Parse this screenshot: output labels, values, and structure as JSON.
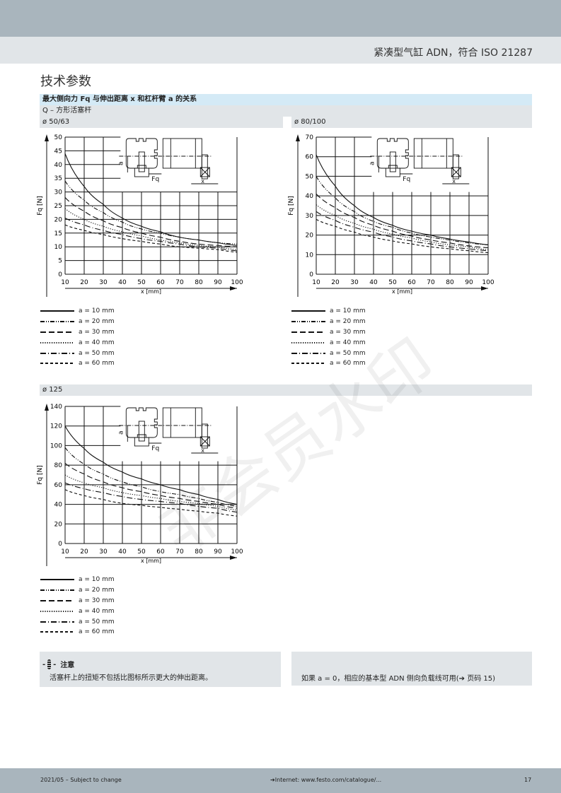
{
  "header": {
    "doc_title": "紧凑型气缸 ADN，符合 ISO 21287"
  },
  "section_title": "技术参数",
  "subsection": {
    "title": "最大侧向力 Fq 与伸出距离 x 和杠杆臂 a 的关系",
    "rod_type": "Q – 方形活塞杆"
  },
  "panels": [
    {
      "label": "ø 50/63"
    },
    {
      "label": "ø 80/100"
    },
    {
      "label": "ø 125"
    }
  ],
  "legend": [
    "a = 10 mm",
    "a = 20 mm",
    "a = 30 mm",
    "a = 40 mm",
    "a = 50 mm",
    "a = 60 mm"
  ],
  "diagram_labels": {
    "a": "a",
    "fq": "Fq",
    "x": "x"
  },
  "notes": {
    "left_title": "注意",
    "left_text": "活塞杆上的扭矩不包括比图标所示更大的伸出距离。",
    "right_text": "如果 a = 0，相应的基本型 ADN 侧向负载线可用(➔ 页码 15)"
  },
  "footer": {
    "left": "2021/05 – Subject to change",
    "center": "➔Internet: www.festo.com/catalogue/...",
    "page": "17"
  },
  "watermark": "非会员水印",
  "chart_data": [
    {
      "type": "line",
      "title": "ø 50/63",
      "xlabel": "x [mm]",
      "ylabel": "Fq [N]",
      "xlim": [
        10,
        100
      ],
      "ylim": [
        0,
        50
      ],
      "xticks": [
        10,
        20,
        30,
        40,
        50,
        60,
        70,
        80,
        90,
        100
      ],
      "yticks": [
        0,
        5,
        10,
        15,
        20,
        25,
        30,
        35,
        40,
        45,
        50
      ],
      "grid": true,
      "x": [
        10,
        20,
        30,
        40,
        50,
        60,
        70,
        80,
        90,
        100
      ],
      "series": [
        {
          "name": "a = 10 mm",
          "values": [
            44,
            32,
            25.5,
            20.5,
            17.5,
            15.5,
            13.5,
            12.5,
            11.5,
            10.5
          ]
        },
        {
          "name": "a = 20 mm",
          "values": [
            34,
            27,
            22.5,
            19,
            16.5,
            15,
            13.5,
            12.5,
            11.5,
            11
          ]
        },
        {
          "name": "a = 30 mm",
          "values": [
            28,
            23,
            19.5,
            17,
            15,
            13.5,
            12,
            11,
            10.5,
            10
          ]
        },
        {
          "name": "a = 40 mm",
          "values": [
            24,
            20,
            17.5,
            15.5,
            14,
            12.5,
            11.5,
            10.5,
            10,
            9
          ]
        },
        {
          "name": "a = 50 mm",
          "values": [
            20.5,
            18,
            16,
            14.5,
            13,
            12,
            11,
            10,
            9.5,
            8.5
          ]
        },
        {
          "name": "a = 60 mm",
          "values": [
            18,
            16,
            14.5,
            13,
            12,
            11,
            10,
            9.5,
            9,
            8
          ]
        }
      ]
    },
    {
      "type": "line",
      "title": "ø 80/100",
      "xlabel": "x [mm]",
      "ylabel": "Fq [N]",
      "xlim": [
        10,
        100
      ],
      "ylim": [
        0,
        70
      ],
      "xticks": [
        10,
        20,
        30,
        40,
        50,
        60,
        70,
        80,
        90,
        100
      ],
      "yticks": [
        0,
        10,
        20,
        30,
        40,
        50,
        60,
        70
      ],
      "grid": true,
      "x": [
        10,
        20,
        30,
        40,
        50,
        60,
        70,
        80,
        90,
        100
      ],
      "series": [
        {
          "name": "a = 10 mm",
          "values": [
            61,
            45,
            35,
            29,
            25,
            22,
            20,
            18,
            16.5,
            15
          ]
        },
        {
          "name": "a = 20 mm",
          "values": [
            50,
            39,
            32,
            27,
            24,
            21,
            19,
            17.5,
            16,
            15
          ]
        },
        {
          "name": "a = 30 mm",
          "values": [
            41,
            34,
            29,
            25,
            22,
            19.5,
            17.5,
            16,
            14.5,
            13.5
          ]
        },
        {
          "name": "a = 40 mm",
          "values": [
            35.5,
            30,
            26,
            23,
            20.5,
            18.5,
            16.5,
            15,
            14,
            12.5
          ]
        },
        {
          "name": "a = 50 mm",
          "values": [
            32,
            27.5,
            24,
            21.5,
            19,
            17,
            15.5,
            14,
            13,
            12
          ]
        },
        {
          "name": "a = 60 mm",
          "values": [
            28,
            24.5,
            21.5,
            19,
            17,
            15.5,
            14,
            13,
            12,
            11
          ]
        }
      ]
    },
    {
      "type": "line",
      "title": "ø 125",
      "xlabel": "x [mm]",
      "ylabel": "Fq [N]",
      "xlim": [
        10,
        100
      ],
      "ylim": [
        0,
        140
      ],
      "xticks": [
        10,
        20,
        30,
        40,
        50,
        60,
        70,
        80,
        90,
        100
      ],
      "yticks": [
        0,
        20,
        40,
        60,
        80,
        100,
        120,
        140
      ],
      "grid": true,
      "x": [
        10,
        20,
        30,
        40,
        50,
        60,
        70,
        80,
        90,
        100
      ],
      "series": [
        {
          "name": "a = 10 mm",
          "values": [
            120,
            97,
            83,
            73,
            66,
            60,
            55,
            50,
            45,
            40
          ]
        },
        {
          "name": "a = 20 mm",
          "values": [
            98,
            81,
            71,
            63,
            58,
            53,
            50,
            46,
            42,
            38
          ]
        },
        {
          "name": "a = 30 mm",
          "values": [
            82,
            71,
            63,
            57,
            53,
            49,
            46,
            43,
            40,
            36
          ]
        },
        {
          "name": "a = 40 mm",
          "values": [
            70,
            62,
            57,
            52,
            49,
            46,
            43,
            41,
            38,
            34
          ]
        },
        {
          "name": "a = 50 mm",
          "values": [
            62,
            56,
            52,
            48,
            45,
            43,
            41,
            38,
            36,
            32
          ]
        },
        {
          "name": "a = 60 mm",
          "values": [
            55,
            49,
            45,
            41,
            39,
            37,
            35,
            33,
            31,
            28
          ]
        }
      ]
    }
  ]
}
